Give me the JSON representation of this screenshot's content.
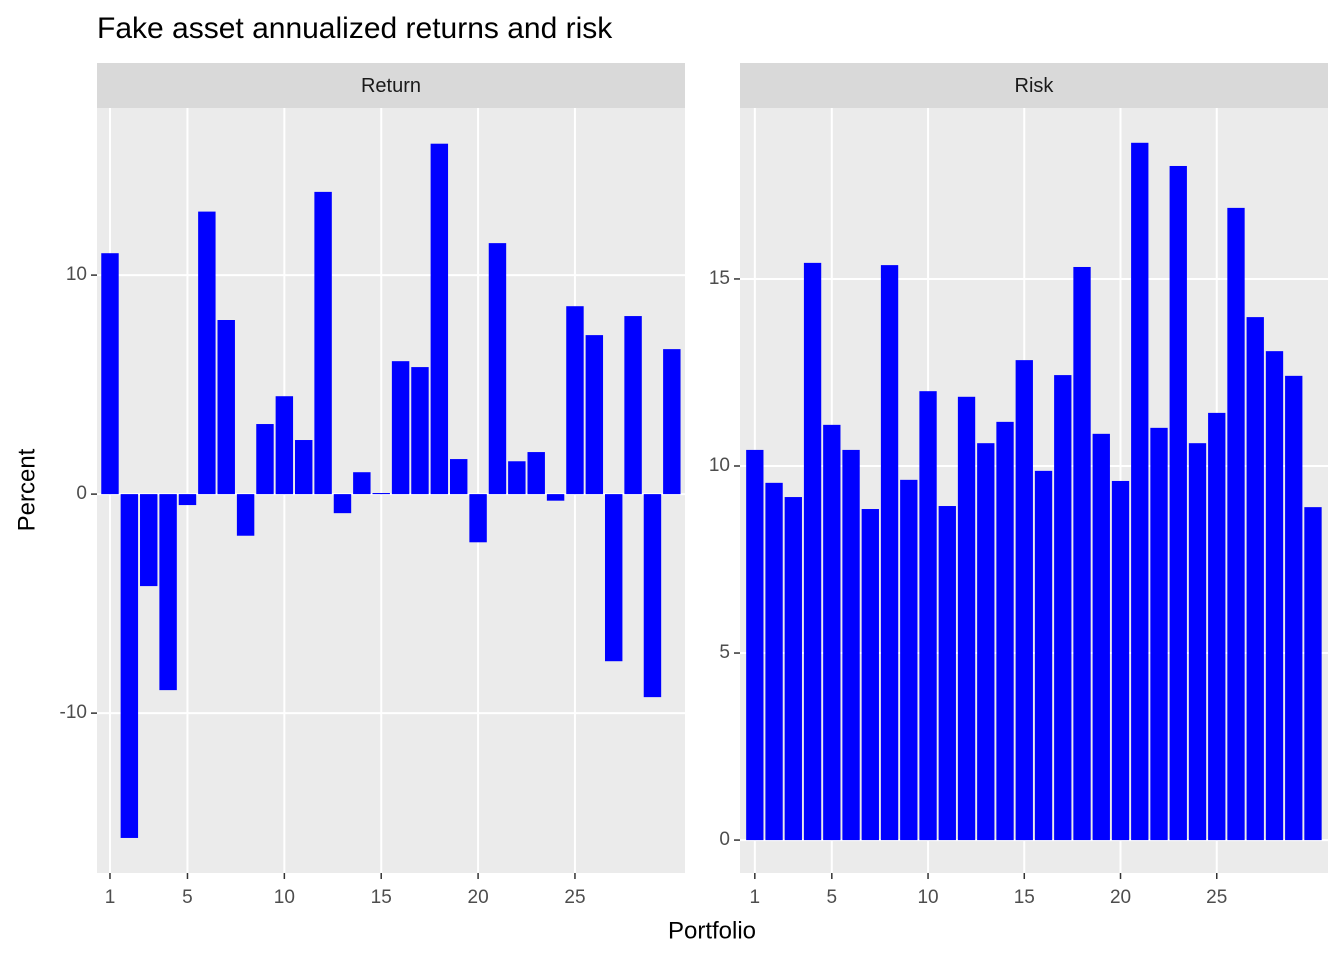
{
  "title": "Fake asset annualized returns and risk",
  "x_label": "Portfolio",
  "y_label": "Percent",
  "chart_data": [
    {
      "type": "bar",
      "panel_title": "Return",
      "color": "#0000ff",
      "grid": true,
      "x": [
        1,
        2,
        3,
        4,
        5,
        6,
        7,
        8,
        9,
        10,
        11,
        12,
        13,
        14,
        15,
        16,
        17,
        18,
        19,
        20,
        21,
        22,
        23,
        24,
        25,
        26,
        27,
        28,
        29,
        30
      ],
      "values": [
        11.0,
        -15.7,
        -4.2,
        -8.95,
        -0.5,
        12.9,
        7.95,
        -1.9,
        3.2,
        4.47,
        2.47,
        13.8,
        -0.87,
        1.0,
        0.05,
        6.07,
        5.8,
        16.0,
        1.6,
        -2.2,
        11.46,
        1.5,
        1.92,
        -0.3,
        8.58,
        7.26,
        -7.63,
        8.13,
        -9.27,
        6.62
      ],
      "xlim": [
        0.33,
        30.68
      ],
      "xticks": [
        1,
        5,
        10,
        15,
        20,
        25
      ],
      "ylim": [
        -17.3,
        17.63
      ],
      "yticks": [
        -10,
        0,
        10
      ]
    },
    {
      "type": "bar",
      "panel_title": "Risk",
      "color": "#0000ff",
      "grid": true,
      "x": [
        1,
        2,
        3,
        4,
        5,
        6,
        7,
        8,
        9,
        10,
        11,
        12,
        13,
        14,
        15,
        16,
        17,
        18,
        19,
        20,
        21,
        22,
        23,
        24,
        25,
        26,
        27,
        28,
        29,
        30
      ],
      "values": [
        10.43,
        9.55,
        9.17,
        15.43,
        11.1,
        10.43,
        8.85,
        15.37,
        9.63,
        12.0,
        8.93,
        11.85,
        10.61,
        11.18,
        12.83,
        9.87,
        12.43,
        15.32,
        10.86,
        9.6,
        18.64,
        11.02,
        18.02,
        10.61,
        11.42,
        16.9,
        13.98,
        13.07,
        12.41,
        8.9
      ],
      "xlim": [
        0.23,
        30.78
      ],
      "xticks": [
        1,
        5,
        10,
        15,
        20,
        25
      ],
      "ylim": [
        -0.88,
        19.57
      ],
      "yticks": [
        0,
        5,
        10,
        15
      ]
    }
  ]
}
